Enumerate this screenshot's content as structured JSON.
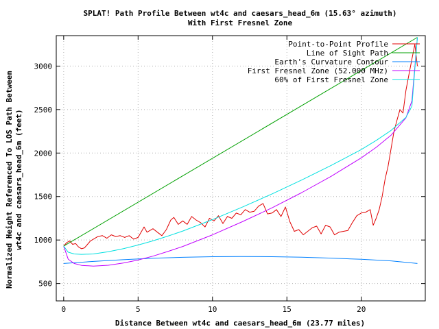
{
  "chart_data": {
    "type": "line",
    "title": "SPLAT! Path Profile Between wt4c and caesars_head_6m (15.63° azimuth)",
    "subtitle": "With First Fresnel Zone",
    "xlabel": "Distance Between wt4c and caesars_head_6m (23.77 miles)",
    "ylabel_line1": "Normalized Height Referenced To LOS Path Between",
    "ylabel_line2": "wt4c and caesars_head_6m (feet)",
    "xlim": [
      -0.5,
      24.3
    ],
    "ylim": [
      300,
      3350
    ],
    "xticks": [
      0,
      5,
      10,
      15,
      20
    ],
    "yticks": [
      500,
      1000,
      1500,
      2000,
      2500,
      3000
    ],
    "grid": true,
    "legend_position": "top-right",
    "series": [
      {
        "name": "Point-to-Point Profile",
        "color": "#e00000",
        "x": [
          0,
          0.2,
          0.4,
          0.6,
          0.8,
          1.0,
          1.2,
          1.4,
          1.6,
          1.8,
          2.0,
          2.3,
          2.6,
          2.9,
          3.2,
          3.5,
          3.8,
          4.1,
          4.4,
          4.7,
          5.0,
          5.2,
          5.4,
          5.6,
          5.8,
          6.0,
          6.3,
          6.6,
          6.9,
          7.2,
          7.4,
          7.7,
          8.0,
          8.3,
          8.6,
          8.9,
          9.2,
          9.5,
          9.8,
          10.1,
          10.4,
          10.7,
          11.0,
          11.3,
          11.6,
          11.9,
          12.2,
          12.5,
          12.8,
          13.1,
          13.4,
          13.7,
          14.0,
          14.3,
          14.6,
          14.9,
          15.2,
          15.5,
          15.8,
          16.1,
          16.4,
          16.7,
          17.0,
          17.3,
          17.6,
          17.9,
          18.2,
          18.5,
          18.8,
          19.1,
          19.4,
          19.7,
          20.0,
          20.3,
          20.6,
          20.8,
          21.0,
          21.2,
          21.4,
          21.6,
          21.8,
          22.0,
          22.2,
          22.4,
          22.6,
          22.8,
          23.0,
          23.2,
          23.4,
          23.6,
          23.77
        ],
        "y": [
          930,
          970,
          990,
          950,
          960,
          920,
          900,
          910,
          950,
          990,
          1010,
          1040,
          1050,
          1020,
          1060,
          1040,
          1050,
          1030,
          1050,
          1010,
          1030,
          1090,
          1150,
          1090,
          1110,
          1130,
          1090,
          1050,
          1120,
          1230,
          1260,
          1180,
          1220,
          1180,
          1270,
          1230,
          1200,
          1150,
          1250,
          1220,
          1280,
          1190,
          1270,
          1250,
          1310,
          1290,
          1350,
          1320,
          1330,
          1390,
          1420,
          1300,
          1310,
          1350,
          1270,
          1380,
          1210,
          1100,
          1120,
          1060,
          1100,
          1140,
          1160,
          1070,
          1170,
          1150,
          1060,
          1090,
          1100,
          1110,
          1200,
          1280,
          1310,
          1320,
          1350,
          1170,
          1250,
          1350,
          1500,
          1700,
          1850,
          2050,
          2250,
          2380,
          2500,
          2460,
          2720,
          2900,
          3080,
          3250,
          3000
        ]
      },
      {
        "name": "Line of Sight Path",
        "color": "#00a000",
        "x": [
          0,
          23.77
        ],
        "y": [
          930,
          3330
        ]
      },
      {
        "name": "Earth's Curvature Contour",
        "color": "#0080ff",
        "x": [
          0,
          2,
          4,
          6,
          8,
          10,
          11.9,
          14,
          16,
          18,
          20,
          22,
          23.77
        ],
        "y": [
          730,
          754,
          774,
          790,
          801,
          808,
          810,
          808,
          802,
          792,
          778,
          760,
          730
        ]
      },
      {
        "name": "First Fresnel Zone (52.000 MHz)",
        "color": "#c000ff",
        "x": [
          0,
          0.3,
          0.7,
          1.2,
          2.0,
          3.0,
          4.0,
          5.0,
          6.0,
          7.0,
          8.0,
          10.0,
          12.0,
          14.0,
          16.0,
          18.0,
          20.0,
          21.0,
          22.0,
          23.0,
          23.4,
          23.77
        ],
        "y": [
          930,
          780,
          730,
          708,
          700,
          710,
          735,
          770,
          815,
          868,
          926,
          1060,
          1210,
          1370,
          1545,
          1735,
          1945,
          2065,
          2205,
          2405,
          2600,
          3330
        ]
      },
      {
        "name": "60% of First Fresnel Zone",
        "color": "#00e0e0",
        "x": [
          0,
          0.3,
          0.7,
          1.2,
          2.0,
          3.0,
          4.0,
          5.0,
          6.0,
          7.0,
          8.0,
          10.0,
          12.0,
          14.0,
          16.0,
          18.0,
          20.0,
          21.0,
          22.0,
          23.0,
          23.4,
          23.77
        ],
        "y": [
          930,
          860,
          840,
          835,
          840,
          865,
          900,
          942,
          990,
          1045,
          1103,
          1235,
          1378,
          1530,
          1690,
          1860,
          2040,
          2145,
          2260,
          2410,
          2540,
          3330
        ]
      }
    ]
  }
}
